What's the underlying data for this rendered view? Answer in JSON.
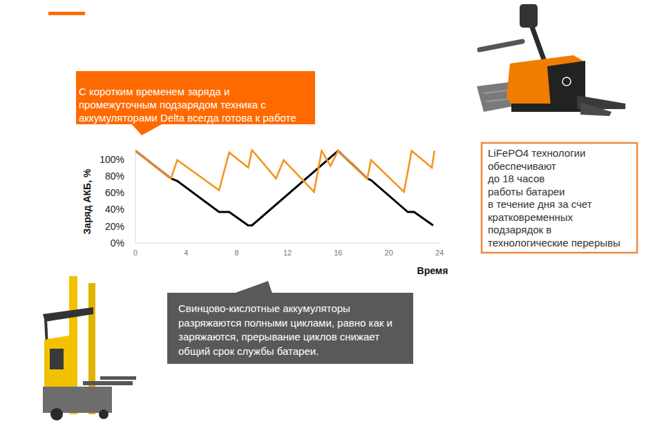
{
  "chart_data": {
    "type": "line",
    "xlabel": "Время",
    "ylabel": "Заряд АКБ, %",
    "xlim": [
      0,
      24
    ],
    "xticks": [
      0,
      4,
      8,
      12,
      16,
      20,
      24
    ],
    "ylim": [
      0,
      112
    ],
    "yticks": [
      {
        "value": 0,
        "label": "0%"
      },
      {
        "value": 20,
        "label": "20%"
      },
      {
        "value": 40,
        "label": "40%"
      },
      {
        "value": 60,
        "label": "60%"
      },
      {
        "value": 80,
        "label": "80%"
      },
      {
        "value": 100,
        "label": "100%"
      }
    ],
    "grid": false,
    "series": [
      {
        "color": "#000000",
        "x": [
          0,
          2.8,
          3.3,
          6.6,
          7.4,
          8.9,
          9.2,
          16,
          18.3,
          18.6,
          21.5,
          22.0,
          23.5
        ],
        "values": [
          110,
          77,
          74,
          37,
          37,
          21,
          21,
          110,
          77,
          75,
          37,
          37,
          21
        ]
      },
      {
        "color": "#f7931e",
        "x": [
          0,
          2.8,
          3.3,
          6.6,
          7.4,
          8.9,
          9.2,
          11.1,
          11.7,
          14.1,
          14.7,
          15.4,
          16,
          18.3,
          18.6,
          21.2,
          21.8,
          23.4,
          23.6
        ],
        "values": [
          110,
          77,
          99,
          63,
          108,
          90,
          111,
          77,
          99,
          61,
          110,
          92,
          110,
          77,
          99,
          61,
          110,
          90,
          110
        ]
      }
    ],
    "annotations": [
      {
        "lines": [
          "С коротким временем заряда и",
          "промежуточным подзарядом техника с",
          "аккумуляторами Delta всегда готова к работе"
        ]
      },
      {
        "lines": [
          "LiFePO4 технологии",
          "обеспечивают",
          "до 18 часов",
          "работы батареи",
          "в течение дня за счет",
          "кратковременных",
          "подзарядок в",
          "технологические перерывы"
        ]
      },
      {
        "lines": [
          "Свинцово-кислотные аккумуляторы",
          "разряжаются полными циклами, равно как и",
          "заряжаются, прерывание циклов снижает",
          "общий срок службы батареи."
        ]
      }
    ]
  }
}
